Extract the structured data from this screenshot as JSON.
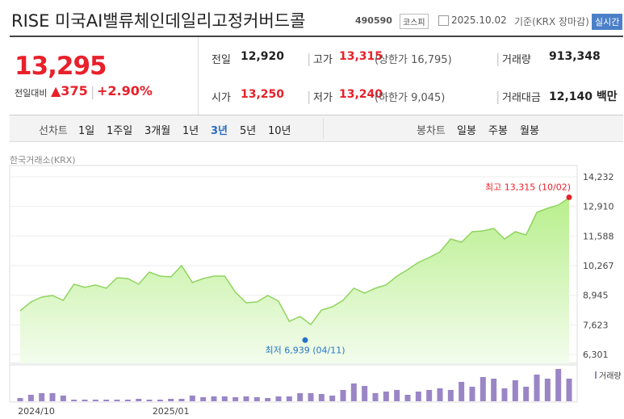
{
  "header": {
    "title": "RISE 미국AI밸류체인데일리고정커버드콜",
    "code": "490590",
    "market": "코스피",
    "date": "2025.10.02",
    "basis": "기준(KRX 장마감)",
    "realtime": "실시간"
  },
  "quote": {
    "price": "13,295",
    "change_label": "전일대비",
    "change": "▲375",
    "change_pct": "+2.90%",
    "rows": [
      [
        {
          "label": "전일",
          "value": "12,920"
        },
        {
          "label": "고가",
          "value": "13,315",
          "extra": "(상한가 16,795)"
        },
        {
          "label": "거래량",
          "value": "913,348"
        }
      ],
      [
        {
          "label": "시가",
          "value": "13,250"
        },
        {
          "label": "저가",
          "value": "13,240",
          "extra": "(하한가 9,045)"
        },
        {
          "label": "거래대금",
          "value": "12,140 백만"
        }
      ]
    ]
  },
  "tabs": {
    "line_label": "선차트",
    "line_items": [
      "1일",
      "1주일",
      "3개월",
      "1년",
      "3년",
      "5년",
      "10년"
    ],
    "active": "3년",
    "candle_label": "봉차트",
    "candle_items": [
      "일봉",
      "주봉",
      "월봉"
    ]
  },
  "source": "한국거래소(KRX)",
  "chart_data": {
    "type": "area",
    "color": "#8fd45e",
    "grid": true,
    "categories": [
      null,
      null,
      null,
      null,
      null,
      null,
      null,
      null,
      null,
      null,
      null,
      null,
      null,
      null,
      null,
      null,
      null,
      null,
      null,
      null,
      null,
      null,
      null,
      null,
      null,
      null,
      null,
      null,
      null,
      null,
      null,
      null,
      null,
      null,
      null,
      null,
      null,
      null,
      null,
      null,
      null,
      null,
      null,
      null,
      null,
      null,
      null,
      null,
      null,
      null,
      null,
      null
    ],
    "values": [
      8248,
      8644,
      8860,
      8933,
      8716,
      9437,
      9293,
      9401,
      9257,
      9726,
      9690,
      9437,
      9978,
      9798,
      9762,
      10267,
      9510,
      9690,
      9798,
      9798,
      9077,
      8608,
      8644,
      8933,
      8680,
      7779,
      7995,
      7635,
      8284,
      8428,
      8716,
      9257,
      9041,
      9257,
      9401,
      9798,
      10086,
      10411,
      10627,
      10879,
      11456,
      11312,
      11781,
      11817,
      11925,
      11456,
      11781,
      11637,
      12646,
      12826,
      12970,
      13295
    ],
    "ylim": [
      6301,
      14232
    ],
    "yticks": [
      {
        "value": 6301,
        "label": "6,301"
      },
      {
        "value": 7623,
        "label": "7,623"
      },
      {
        "value": 8945,
        "label": "8,945"
      },
      {
        "value": 10267,
        "label": "10,267"
      },
      {
        "value": 11588,
        "label": "11,588"
      },
      {
        "value": 12910,
        "label": "12,910"
      },
      {
        "value": 14232,
        "label": "14,232"
      }
    ],
    "xticks": [
      {
        "value": 1.5,
        "label": "2024/10"
      },
      {
        "value": 14,
        "label": "2025/01"
      }
    ],
    "annotations": [
      {
        "label": "최고 13,315 (10/02)",
        "value": 13315,
        "color": "#e8202a"
      },
      {
        "label": "최저 6,939 (04/11)",
        "value": 6939,
        "color": "#2574c9"
      }
    ],
    "volume": {
      "name": "거래량",
      "color": "#9a86c6",
      "values": [
        4,
        8,
        10,
        10,
        7,
        2,
        2,
        2,
        2,
        2,
        2,
        3,
        2,
        2,
        3,
        3,
        7,
        5,
        6,
        6,
        5,
        6,
        5,
        4,
        6,
        6,
        10,
        10,
        9,
        7,
        14,
        22,
        19,
        10,
        12,
        14,
        8,
        12,
        14,
        16,
        14,
        24,
        18,
        30,
        28,
        16,
        26,
        18,
        33,
        28,
        40,
        28
      ],
      "ylim": [
        0,
        45
      ]
    }
  }
}
